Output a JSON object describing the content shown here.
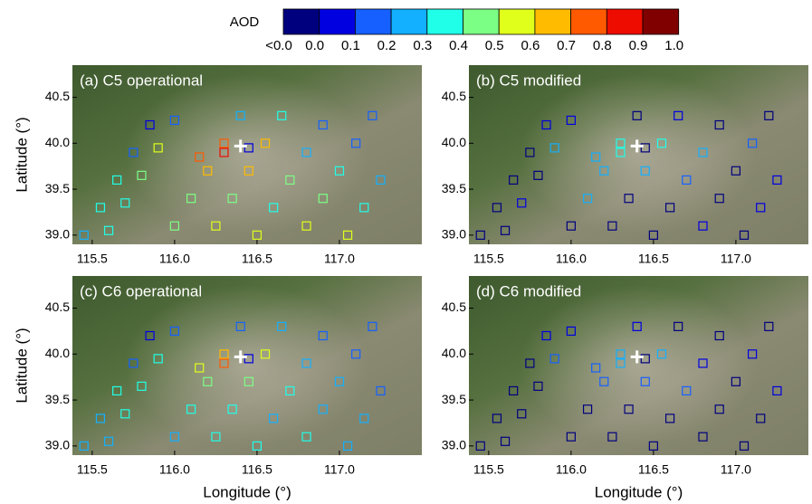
{
  "colorbar": {
    "label": "AOD",
    "under_label": "<0.0",
    "colors": [
      "#00007f",
      "#0000e0",
      "#1560ff",
      "#12b0ff",
      "#20ffe8",
      "#7cff85",
      "#e0ff1a",
      "#ffbb00",
      "#ff5a00",
      "#ee0c00",
      "#800000"
    ],
    "ticks": [
      {
        "value": 0,
        "label": "0.0"
      },
      0.1,
      0.2,
      0.3,
      0.4,
      0.5,
      0.6,
      0.7,
      0.8,
      0.9,
      {
        "value": 1,
        "label": "1.0"
      }
    ]
  },
  "chart_data": [
    {
      "type": "scatter",
      "title": "(a) C5 operational",
      "ylabel": "Latitude (°)",
      "xlim": [
        115.38,
        117.5
      ],
      "ylim": [
        38.9,
        40.85
      ],
      "xticks": [
        115.5,
        {
          "value": 116,
          "label": "116.0"
        },
        116.5,
        {
          "value": 117,
          "label": "117.0"
        }
      ],
      "yticks": [
        {
          "value": 39,
          "label": "39.0"
        },
        39.5,
        {
          "value": 40,
          "label": "40.0"
        },
        40.5
      ],
      "marker": {
        "x": 116.4,
        "y": 39.97
      },
      "x": [
        115.45,
        115.55,
        115.65,
        115.75,
        115.85,
        115.6,
        115.7,
        115.8,
        115.9,
        116.0,
        116.0,
        116.1,
        116.2,
        116.3,
        116.4,
        116.25,
        116.35,
        116.45,
        116.55,
        116.65,
        116.5,
        116.6,
        116.7,
        116.8,
        116.9,
        116.8,
        116.9,
        117.0,
        117.1,
        117.2,
        117.05,
        117.15,
        117.25,
        116.15,
        116.3,
        116.45
      ],
      "y": [
        39.0,
        39.3,
        39.6,
        39.9,
        40.2,
        39.05,
        39.35,
        39.65,
        39.95,
        40.25,
        39.1,
        39.4,
        39.7,
        40.0,
        40.3,
        39.1,
        39.4,
        39.7,
        40.0,
        40.3,
        39.0,
        39.3,
        39.6,
        39.9,
        40.2,
        39.1,
        39.4,
        39.7,
        40.0,
        40.3,
        39.0,
        39.3,
        39.6,
        39.85,
        39.9,
        39.95
      ],
      "values": [
        0.25,
        0.3,
        0.35,
        0.15,
        0.05,
        0.35,
        0.3,
        0.45,
        0.55,
        0.12,
        0.45,
        0.4,
        0.6,
        0.75,
        0.2,
        0.5,
        0.45,
        0.65,
        0.62,
        0.3,
        0.55,
        0.35,
        0.4,
        0.28,
        0.15,
        0.58,
        0.4,
        0.3,
        0.18,
        0.12,
        0.5,
        0.35,
        0.25,
        0.7,
        0.85,
        0.05
      ]
    },
    {
      "type": "scatter",
      "title": "(b) C5 modified",
      "xlim": [
        115.38,
        117.44
      ],
      "ylim": [
        38.9,
        40.85
      ],
      "xticks": [
        115.5,
        {
          "value": 116,
          "label": "116.0"
        },
        116.5,
        {
          "value": 117,
          "label": "117.0"
        }
      ],
      "yticks": [
        {
          "value": 39,
          "label": "39.0"
        },
        39.5,
        {
          "value": 40,
          "label": "40.0"
        },
        40.5
      ],
      "marker": {
        "x": 116.4,
        "y": 39.97
      },
      "x": [
        115.45,
        115.55,
        115.65,
        115.75,
        115.85,
        115.6,
        115.7,
        115.8,
        115.9,
        116.0,
        116.0,
        116.1,
        116.2,
        116.3,
        116.4,
        116.25,
        116.35,
        116.45,
        116.55,
        116.65,
        116.5,
        116.6,
        116.7,
        116.8,
        116.9,
        116.8,
        116.9,
        117.0,
        117.1,
        117.2,
        117.05,
        117.15,
        117.25,
        116.15,
        116.3,
        116.45
      ],
      "y": [
        39.0,
        39.3,
        39.6,
        39.9,
        40.2,
        39.05,
        39.35,
        39.65,
        39.95,
        40.25,
        39.1,
        39.4,
        39.7,
        40.0,
        40.3,
        39.1,
        39.4,
        39.7,
        40.0,
        40.3,
        39.0,
        39.3,
        39.6,
        39.9,
        40.2,
        39.1,
        39.4,
        39.7,
        40.0,
        40.3,
        39.0,
        39.3,
        39.6,
        39.85,
        39.9,
        39.95
      ],
      "values": [
        -0.05,
        -0.05,
        -0.02,
        -0.1,
        0.05,
        -0.05,
        0.05,
        -0.05,
        0.25,
        0.02,
        -0.05,
        0.2,
        0.25,
        0.35,
        -0.05,
        -0.05,
        -0.02,
        0.25,
        0.3,
        0.05,
        -0.05,
        -0.05,
        0.15,
        0.22,
        -0.05,
        0.05,
        -0.05,
        -0.05,
        0.1,
        -0.05,
        -0.05,
        0.05,
        0.05,
        0.2,
        0.3,
        -0.05
      ]
    },
    {
      "type": "scatter",
      "title": "(c) C6 operational",
      "ylabel": "Latitude (°)",
      "xlabel": "Longitude (°)",
      "xlim": [
        115.38,
        117.5
      ],
      "ylim": [
        38.9,
        40.85
      ],
      "xticks": [
        115.5,
        {
          "value": 116,
          "label": "116.0"
        },
        116.5,
        {
          "value": 117,
          "label": "117.0"
        }
      ],
      "yticks": [
        {
          "value": 39,
          "label": "39.0"
        },
        39.5,
        {
          "value": 40,
          "label": "40.0"
        },
        40.5
      ],
      "marker": {
        "x": 116.4,
        "y": 39.97
      },
      "x": [
        115.45,
        115.55,
        115.65,
        115.75,
        115.85,
        115.6,
        115.7,
        115.8,
        115.9,
        116.0,
        116.0,
        116.1,
        116.2,
        116.3,
        116.4,
        116.25,
        116.35,
        116.45,
        116.55,
        116.65,
        116.5,
        116.6,
        116.7,
        116.8,
        116.9,
        116.8,
        116.9,
        117.0,
        117.1,
        117.2,
        117.05,
        117.15,
        117.25,
        116.15,
        116.3,
        116.45
      ],
      "y": [
        39.0,
        39.3,
        39.6,
        39.9,
        40.2,
        39.05,
        39.35,
        39.65,
        39.95,
        40.25,
        39.1,
        39.4,
        39.7,
        40.0,
        40.3,
        39.1,
        39.4,
        39.7,
        40.0,
        40.3,
        39.0,
        39.3,
        39.6,
        39.9,
        40.2,
        39.1,
        39.4,
        39.7,
        40.0,
        40.3,
        39.0,
        39.3,
        39.6,
        39.85,
        39.9,
        39.95
      ],
      "values": [
        0.2,
        0.25,
        0.3,
        0.15,
        0.05,
        0.25,
        0.3,
        0.35,
        0.35,
        0.1,
        0.25,
        0.3,
        0.45,
        0.6,
        0.1,
        0.3,
        0.3,
        0.45,
        0.55,
        0.2,
        0.3,
        0.2,
        0.35,
        0.25,
        0.12,
        0.3,
        0.2,
        0.2,
        0.15,
        0.1,
        0.25,
        0.2,
        0.15,
        0.55,
        0.7,
        0.05
      ]
    },
    {
      "type": "scatter",
      "title": "(d) C6 modified",
      "xlabel": "Longitude (°)",
      "xlim": [
        115.38,
        117.44
      ],
      "ylim": [
        38.9,
        40.85
      ],
      "xticks": [
        115.5,
        {
          "value": 116,
          "label": "116.0"
        },
        116.5,
        {
          "value": 117,
          "label": "117.0"
        }
      ],
      "yticks": [
        {
          "value": 39,
          "label": "39.0"
        },
        39.5,
        {
          "value": 40,
          "label": "40.0"
        },
        40.5
      ],
      "marker": {
        "x": 116.4,
        "y": 39.97
      },
      "x": [
        115.45,
        115.55,
        115.65,
        115.75,
        115.85,
        115.6,
        115.7,
        115.8,
        115.9,
        116.0,
        116.0,
        116.1,
        116.2,
        116.3,
        116.4,
        116.25,
        116.35,
        116.45,
        116.55,
        116.65,
        116.5,
        116.6,
        116.7,
        116.8,
        116.9,
        116.8,
        116.9,
        117.0,
        117.1,
        117.2,
        117.05,
        117.15,
        117.25,
        116.15,
        116.3,
        116.45
      ],
      "y": [
        39.0,
        39.3,
        39.6,
        39.9,
        40.2,
        39.05,
        39.35,
        39.65,
        39.95,
        40.25,
        39.1,
        39.4,
        39.7,
        40.0,
        40.3,
        39.1,
        39.4,
        39.7,
        40.0,
        40.3,
        39.0,
        39.3,
        39.6,
        39.9,
        40.2,
        39.1,
        39.4,
        39.7,
        40.0,
        40.3,
        39.0,
        39.3,
        39.6,
        39.85,
        39.9,
        39.95
      ],
      "values": [
        -0.05,
        -0.05,
        -0.05,
        -0.05,
        0.05,
        -0.05,
        -0.05,
        -0.05,
        0.15,
        0.05,
        -0.05,
        -0.05,
        0.1,
        0.2,
        0.05,
        -0.05,
        -0.05,
        0.15,
        0.2,
        -0.05,
        -0.05,
        -0.05,
        0.1,
        0.05,
        -0.05,
        -0.05,
        -0.05,
        -0.05,
        0.05,
        -0.05,
        -0.05,
        -0.05,
        0.05,
        0.15,
        0.2,
        -0.05
      ]
    }
  ]
}
